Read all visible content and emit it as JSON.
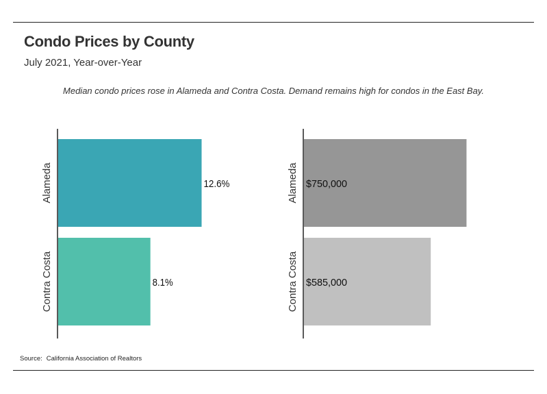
{
  "header": {
    "title": "Condo Prices by County",
    "subtitle": "July 2021, Year-over-Year",
    "note": "Median condo prices rose in Alameda and Contra Costa. Demand remains high for condos in the East Bay."
  },
  "footer": {
    "source_label": "Source:",
    "source_text": "California Association of Realtors"
  },
  "chart_data": [
    {
      "type": "bar",
      "orientation": "horizontal",
      "categories": [
        "Alameda",
        "Contra Costa"
      ],
      "values": [
        12.6,
        8.1
      ],
      "data_labels": [
        "12.6%",
        "8.1%"
      ],
      "colors": [
        "#3aa6b4",
        "#52bfab"
      ],
      "xlim": [
        0,
        16.6
      ],
      "title": "",
      "xlabel": "",
      "ylabel": "",
      "grid": false
    },
    {
      "type": "bar",
      "orientation": "horizontal",
      "categories": [
        "Alameda",
        "Contra Costa"
      ],
      "values": [
        750000,
        585000
      ],
      "data_labels": [
        "$750,000",
        "$585,000"
      ],
      "colors": [
        "#969696",
        "#c0c0c0"
      ],
      "xlim": [
        0,
        935000
      ],
      "title": "",
      "xlabel": "",
      "ylabel": "",
      "grid": false
    }
  ]
}
